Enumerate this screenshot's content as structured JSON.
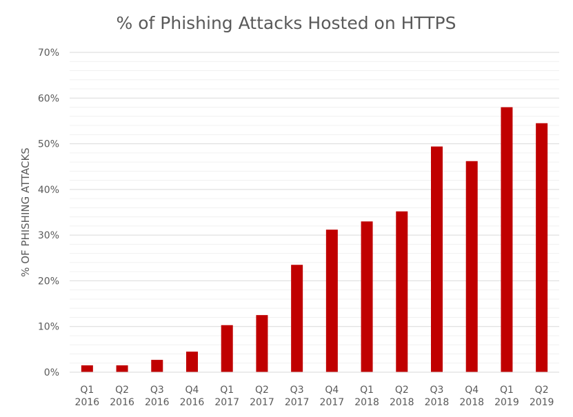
{
  "chart_data": {
    "type": "bar",
    "title": "% of Phishing Attacks Hosted on HTTPS",
    "xlabel": "",
    "ylabel": "% OF PHISHING ATTACKS",
    "categories": [
      [
        "Q1",
        "2016"
      ],
      [
        "Q2",
        "2016"
      ],
      [
        "Q3",
        "2016"
      ],
      [
        "Q4",
        "2016"
      ],
      [
        "Q1",
        "2017"
      ],
      [
        "Q2",
        "2017"
      ],
      [
        "Q3",
        "2017"
      ],
      [
        "Q4",
        "2017"
      ],
      [
        "Q1",
        "2018"
      ],
      [
        "Q2",
        "2018"
      ],
      [
        "Q3",
        "2018"
      ],
      [
        "Q4",
        "2018"
      ],
      [
        "Q1",
        "2019"
      ],
      [
        "Q2",
        "2019"
      ]
    ],
    "values": [
      1.5,
      1.5,
      2.7,
      4.5,
      10.3,
      12.5,
      23.5,
      31.2,
      33.0,
      35.2,
      49.4,
      46.2,
      58.0,
      54.5
    ],
    "ylim": [
      0,
      70
    ],
    "yticks": [
      "0%",
      "10%",
      "20%",
      "30%",
      "40%",
      "50%",
      "60%",
      "70%"
    ],
    "ytick_values": [
      0,
      10,
      20,
      30,
      40,
      50,
      60,
      70
    ],
    "minor_step": 2,
    "grid": true,
    "legend": "none",
    "bar_color": "#c00000"
  }
}
